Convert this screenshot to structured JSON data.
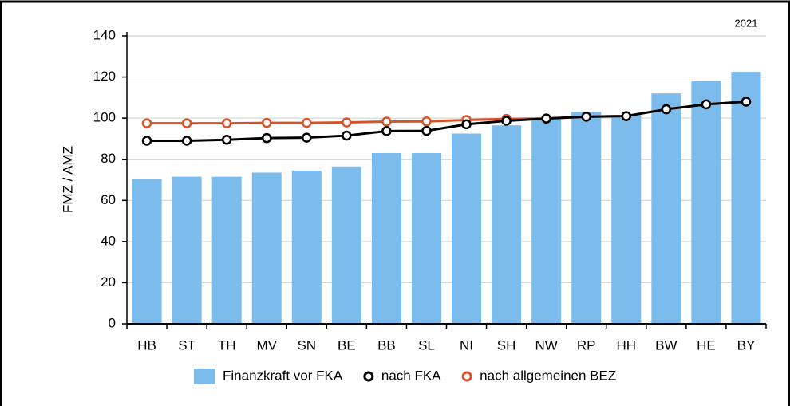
{
  "chart_data": {
    "type": "bar_line",
    "annotation": "2021",
    "ylabel": "FMZ / AMZ",
    "categories": [
      "HB",
      "ST",
      "TH",
      "MV",
      "SN",
      "BE",
      "BB",
      "SL",
      "NI",
      "SH",
      "NW",
      "RP",
      "HH",
      "BW",
      "HE",
      "BY"
    ],
    "series": [
      {
        "name": "Finanzkraft vor FKA",
        "kind": "bar",
        "color": "#7cbcec",
        "values": [
          70.5,
          71.5,
          71.5,
          73.5,
          74.5,
          76.5,
          83,
          83,
          92.5,
          96.5,
          99.5,
          103,
          101.5,
          112,
          118,
          122.5
        ]
      },
      {
        "name": "nach FKA",
        "kind": "line",
        "color": "#000000",
        "values": [
          89,
          89,
          89.5,
          90.3,
          90.5,
          91.5,
          93.7,
          93.8,
          97,
          98.7,
          99.8,
          100.7,
          101,
          104.3,
          106.7,
          108
        ]
      },
      {
        "name": "nach allgemeinen BEZ",
        "kind": "line",
        "color": "#d4532b",
        "values": [
          97.5,
          97.5,
          97.5,
          97.7,
          97.7,
          97.9,
          98.3,
          98.4,
          99.1,
          99.6,
          99.8,
          100.7,
          101,
          104.3,
          106.7,
          108
        ]
      }
    ],
    "ylim": [
      0,
      140
    ],
    "yticks": [
      0,
      20,
      40,
      60,
      80,
      100,
      120,
      140
    ],
    "grid": true
  }
}
